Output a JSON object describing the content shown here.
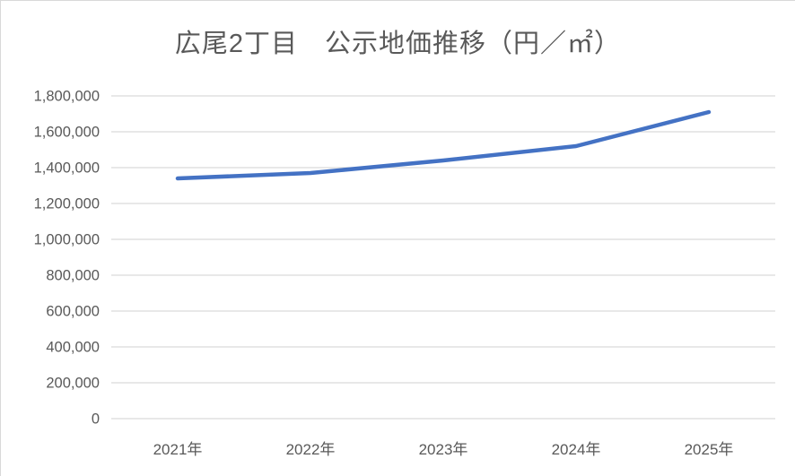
{
  "chart": {
    "title": "広尾2丁目　公示地価推移（円／㎡）"
  },
  "chart_data": {
    "type": "line",
    "title": "広尾2丁目　公示地価推移（円／㎡）",
    "categories": [
      "2021年",
      "2022年",
      "2023年",
      "2024年",
      "2025年"
    ],
    "series": [
      {
        "name": "公示地価",
        "values": [
          1340000,
          1370000,
          1440000,
          1520000,
          1710000
        ]
      }
    ],
    "xlabel": "",
    "ylabel": "",
    "ylim": [
      0,
      1800000
    ],
    "ytick_step": 200000,
    "grid": "horizontal",
    "legend": "none",
    "colors": {
      "line": "#4472c4",
      "gridline": "#d9d9d9",
      "text": "#595959",
      "background": "#ffffff"
    }
  }
}
